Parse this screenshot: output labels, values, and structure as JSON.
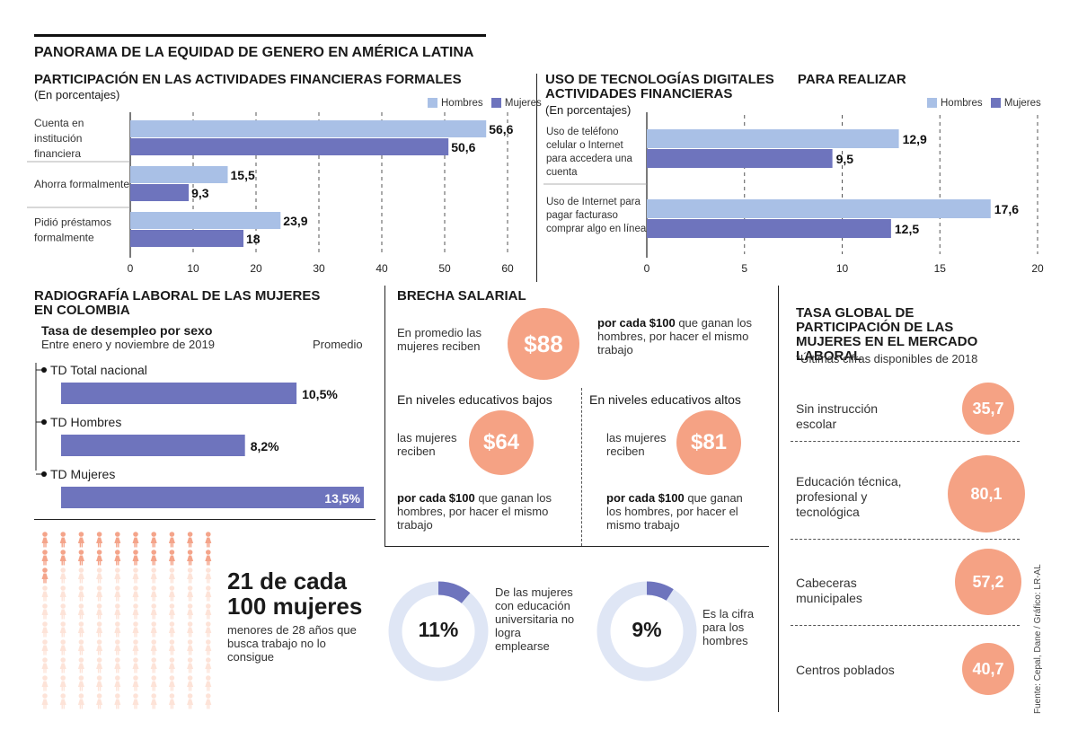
{
  "colors": {
    "hombres": "#a9c0e6",
    "mujeres": "#6e74bd",
    "salmon": "#f5a284",
    "ring": "#dfe6f5",
    "figure": "#f4a48a",
    "figure_light": "#fde3d8"
  },
  "main_title": "PANORAMA DE LA EQUIDAD DE GENERO EN AMÉRICA LATINA",
  "financial": {
    "title": "PARTICIPACIÓN EN LAS ACTIVIDADES FINANCIERAS FORMALES",
    "subtitle": "(En porcentajes)",
    "legend_hombres": "Hombres",
    "legend_mujeres": "Mujeres"
  },
  "digital": {
    "title_line1": "USO DE TECNOLOGÍAS DIGITALES",
    "title_extra": "PARA REALIZAR",
    "title_line2": "ACTIVIDADES FINANCIERAS",
    "subtitle": "(En porcentajes)",
    "legend_hombres": "Hombres",
    "legend_mujeres": "Mujeres"
  },
  "labor": {
    "title": "RADIOGRAFÍA LABORAL DE LAS MUJERES EN COLOMBIA",
    "sub_bold": "Tasa de desempleo por sexo",
    "sub": "Entre enero y noviembre de 2019",
    "promedio": "Promedio"
  },
  "salary": {
    "title": "BRECHA SALARIAL",
    "intro": "En promedio las mujeres reciben",
    "main_value": "$88",
    "main_tail_bold": "por cada $100",
    "main_tail": " que ganan los hombres, por hacer el mismo trabajo",
    "low_title": "En niveles educativos bajos",
    "low_intro": "las mujeres reciben",
    "low_value": "$64",
    "low_tail_bold": "por cada $100",
    "low_tail": " que ganan los hombres, por hacer el mismo trabajo",
    "high_title": "En niveles educativos altos",
    "high_intro": "las mujeres reciben",
    "high_value": "$81",
    "high_tail_bold": "por cada $100",
    "high_tail": " que ganan los hombres, por hacer el mismo trabajo"
  },
  "women_stat": {
    "headline1": "21 de cada",
    "headline2": "100 mujeres",
    "text": "menores de 28 años que busca trabajo no lo consigue",
    "highlighted": 21,
    "total": 100
  },
  "donuts": {
    "women_value": "11%",
    "women_text": "De las mujeres con educación universitaria no logra emplearse",
    "women_pct": 11,
    "men_value": "9%",
    "men_text": "Es la cifra para los hombres",
    "men_pct": 9
  },
  "participation": {
    "title": "TASA GLOBAL DE PARTICIPACIÓN DE LAS MUJERES EN EL MERCADO LABORAL",
    "note": "*Últimas cifras disponibles de 2018",
    "items": [
      {
        "label": "Sin instrucción escolar",
        "value": "35,7"
      },
      {
        "label": "Educación técnica, profesional y tecnológica",
        "value": "80,1"
      },
      {
        "label": "Cabeceras municipales",
        "value": "57,2"
      },
      {
        "label": "Centros poblados",
        "value": "40,7"
      }
    ]
  },
  "source": "Fuente: Cepal, Dane / Gráfico: LR-AL",
  "chart_data": [
    {
      "type": "bar",
      "orientation": "horizontal",
      "title": "PARTICIPACIÓN EN LAS ACTIVIDADES FINANCIERAS FORMALES",
      "categories": [
        "Cuenta en institución financiera",
        "Ahorra formalmente",
        "Pidió préstamos formalmente"
      ],
      "series": [
        {
          "name": "Hombres",
          "values": [
            56.6,
            15.5,
            23.9
          ],
          "labels": [
            "56,6",
            "15,5",
            "23,9"
          ]
        },
        {
          "name": "Mujeres",
          "values": [
            50.6,
            9.3,
            18
          ],
          "labels": [
            "50,6",
            "9,3",
            "18"
          ]
        }
      ],
      "xlim": [
        0,
        60
      ],
      "ticks": [
        "0",
        "10",
        "20",
        "30",
        "40",
        "50",
        "60"
      ]
    },
    {
      "type": "bar",
      "orientation": "horizontal",
      "title": "USO DE TECNOLOGÍAS DIGITALES PARA REALIZAR ACTIVIDADES FINANCIERAS",
      "categories": [
        "Uso de teléfono celular o Internet para accedera una cuenta",
        "Uso de Internet para pagar facturaso comprar algo en línea"
      ],
      "series": [
        {
          "name": "Hombres",
          "values": [
            12.9,
            17.6
          ],
          "labels": [
            "12,9",
            "17,6"
          ]
        },
        {
          "name": "Mujeres",
          "values": [
            9.5,
            12.5
          ],
          "labels": [
            "9,5",
            "12,5"
          ]
        }
      ],
      "xlim": [
        0,
        20
      ],
      "ticks": [
        "0",
        "5",
        "10",
        "15",
        "20"
      ]
    },
    {
      "type": "bar",
      "orientation": "horizontal",
      "title": "Tasa de desempleo por sexo",
      "categories": [
        "TD Total nacional",
        "TD Hombres",
        "TD Mujeres"
      ],
      "values": [
        10.5,
        8.2,
        13.5
      ],
      "labels": [
        "10,5%",
        "8,2%",
        "13,5%"
      ]
    }
  ]
}
